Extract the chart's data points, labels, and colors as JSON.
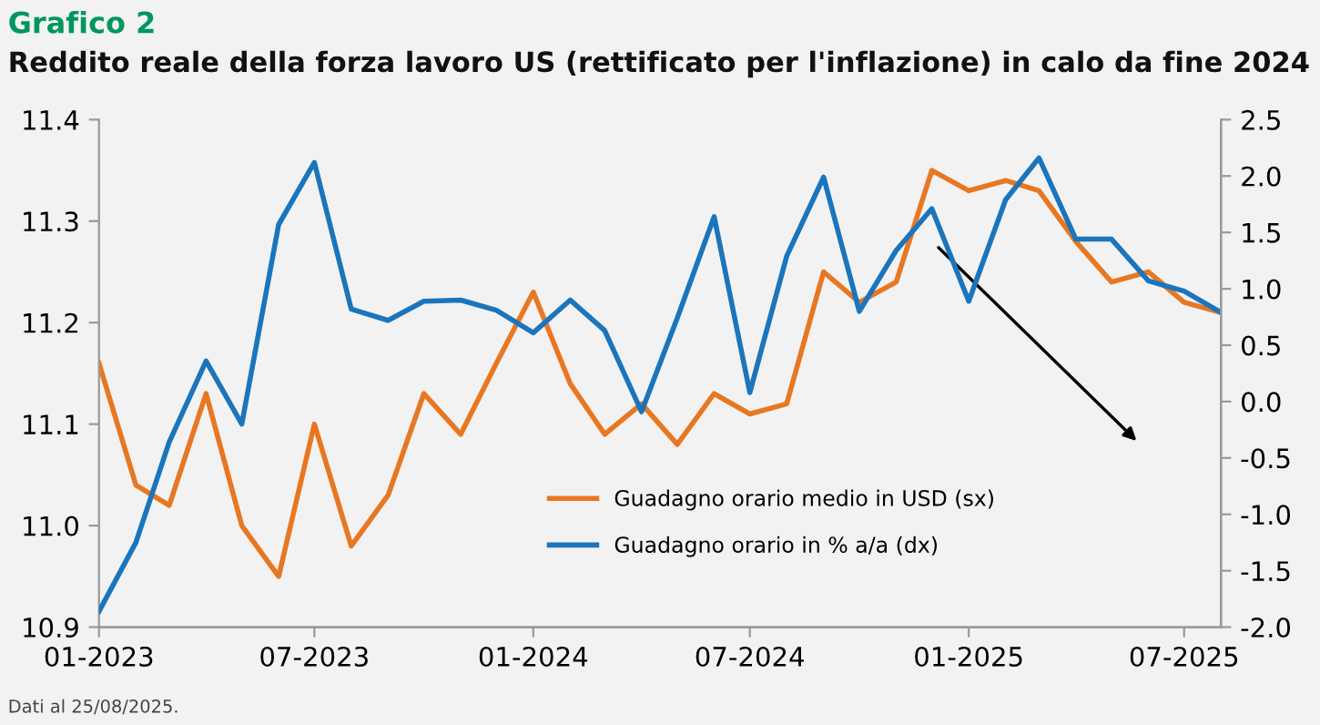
{
  "chart_data": {
    "type": "line",
    "title": "Grafico 2",
    "subtitle": "Reddito reale della forza lavoro US (rettificato per l'inflazione) in calo da fine 2024",
    "x": [
      "2023-01",
      "2023-02",
      "2023-03",
      "2023-04",
      "2023-05",
      "2023-06",
      "2023-07",
      "2023-08",
      "2023-09",
      "2023-10",
      "2023-11",
      "2023-12",
      "2024-01",
      "2024-02",
      "2024-03",
      "2024-04",
      "2024-05",
      "2024-06",
      "2024-07",
      "2024-08",
      "2024-09",
      "2024-10",
      "2024-11",
      "2024-12",
      "2025-01",
      "2025-02",
      "2025-03",
      "2025-04",
      "2025-05",
      "2025-06",
      "2025-07",
      "2025-08"
    ],
    "series": [
      {
        "name": "Guadagno orario medio in USD (sx)",
        "color": "#e87722",
        "values": [
          11.16,
          11.04,
          11.02,
          11.13,
          11.0,
          10.95,
          11.1,
          10.98,
          11.03,
          11.13,
          11.09,
          11.16,
          11.23,
          11.14,
          11.09,
          11.12,
          11.08,
          11.13,
          11.11,
          11.12,
          11.25,
          11.22,
          11.24,
          11.35,
          11.33,
          11.34,
          11.33,
          11.28,
          11.24,
          11.25,
          11.22,
          11.21
        ]
      },
      {
        "name": "Guadagno orario in % a/a (dx)",
        "color": "#1a75bc",
        "axis": "y2",
        "values": [
          -1.86,
          -1.25,
          -0.36,
          0.36,
          -0.2,
          1.57,
          2.12,
          0.82,
          0.72,
          0.89,
          0.9,
          0.81,
          0.61,
          0.9,
          0.63,
          -0.09,
          0.74,
          1.64,
          0.08,
          1.29,
          1.99,
          0.8,
          1.34,
          1.71,
          0.89,
          1.79,
          2.16,
          1.44,
          1.44,
          1.07,
          0.98,
          0.79
        ]
      }
    ],
    "xlim": [
      "2023-01",
      "2025-08"
    ],
    "xticks": [
      {
        "value": "2023-01",
        "label": "01-2023"
      },
      {
        "value": "2023-07",
        "label": "07-2023"
      },
      {
        "value": "2024-01",
        "label": "01-2024"
      },
      {
        "value": "2024-07",
        "label": "07-2024"
      },
      {
        "value": "2025-01",
        "label": "01-2025"
      },
      {
        "value": "2025-07",
        "label": "07-2025"
      }
    ],
    "ylim": [
      10.9,
      11.4
    ],
    "yticks": [
      {
        "value": 10.9,
        "label": "10.9"
      },
      {
        "value": 11.0,
        "label": "11.0"
      },
      {
        "value": 11.1,
        "label": "11.1"
      },
      {
        "value": 11.2,
        "label": "11.2"
      },
      {
        "value": 11.3,
        "label": "11.3"
      },
      {
        "value": 11.4,
        "label": "11.4"
      }
    ],
    "y2lim": [
      -2.0,
      2.5
    ],
    "y2ticks": [
      {
        "value": -2.0,
        "label": "-2.0"
      },
      {
        "value": -1.5,
        "label": "-1.5"
      },
      {
        "value": -1.0,
        "label": "-1.0"
      },
      {
        "value": -0.5,
        "label": "-0.5"
      },
      {
        "value": 0.0,
        "label": "0.0"
      },
      {
        "value": 0.5,
        "label": "0.5"
      },
      {
        "value": 1.0,
        "label": "1.0"
      },
      {
        "value": 1.5,
        "label": "1.5"
      },
      {
        "value": 2.0,
        "label": "2.0"
      },
      {
        "value": 2.5,
        "label": "2.5"
      }
    ],
    "grid": false,
    "legend": "lower center",
    "annotations": [
      "Dati al 25/08/2025."
    ]
  }
}
